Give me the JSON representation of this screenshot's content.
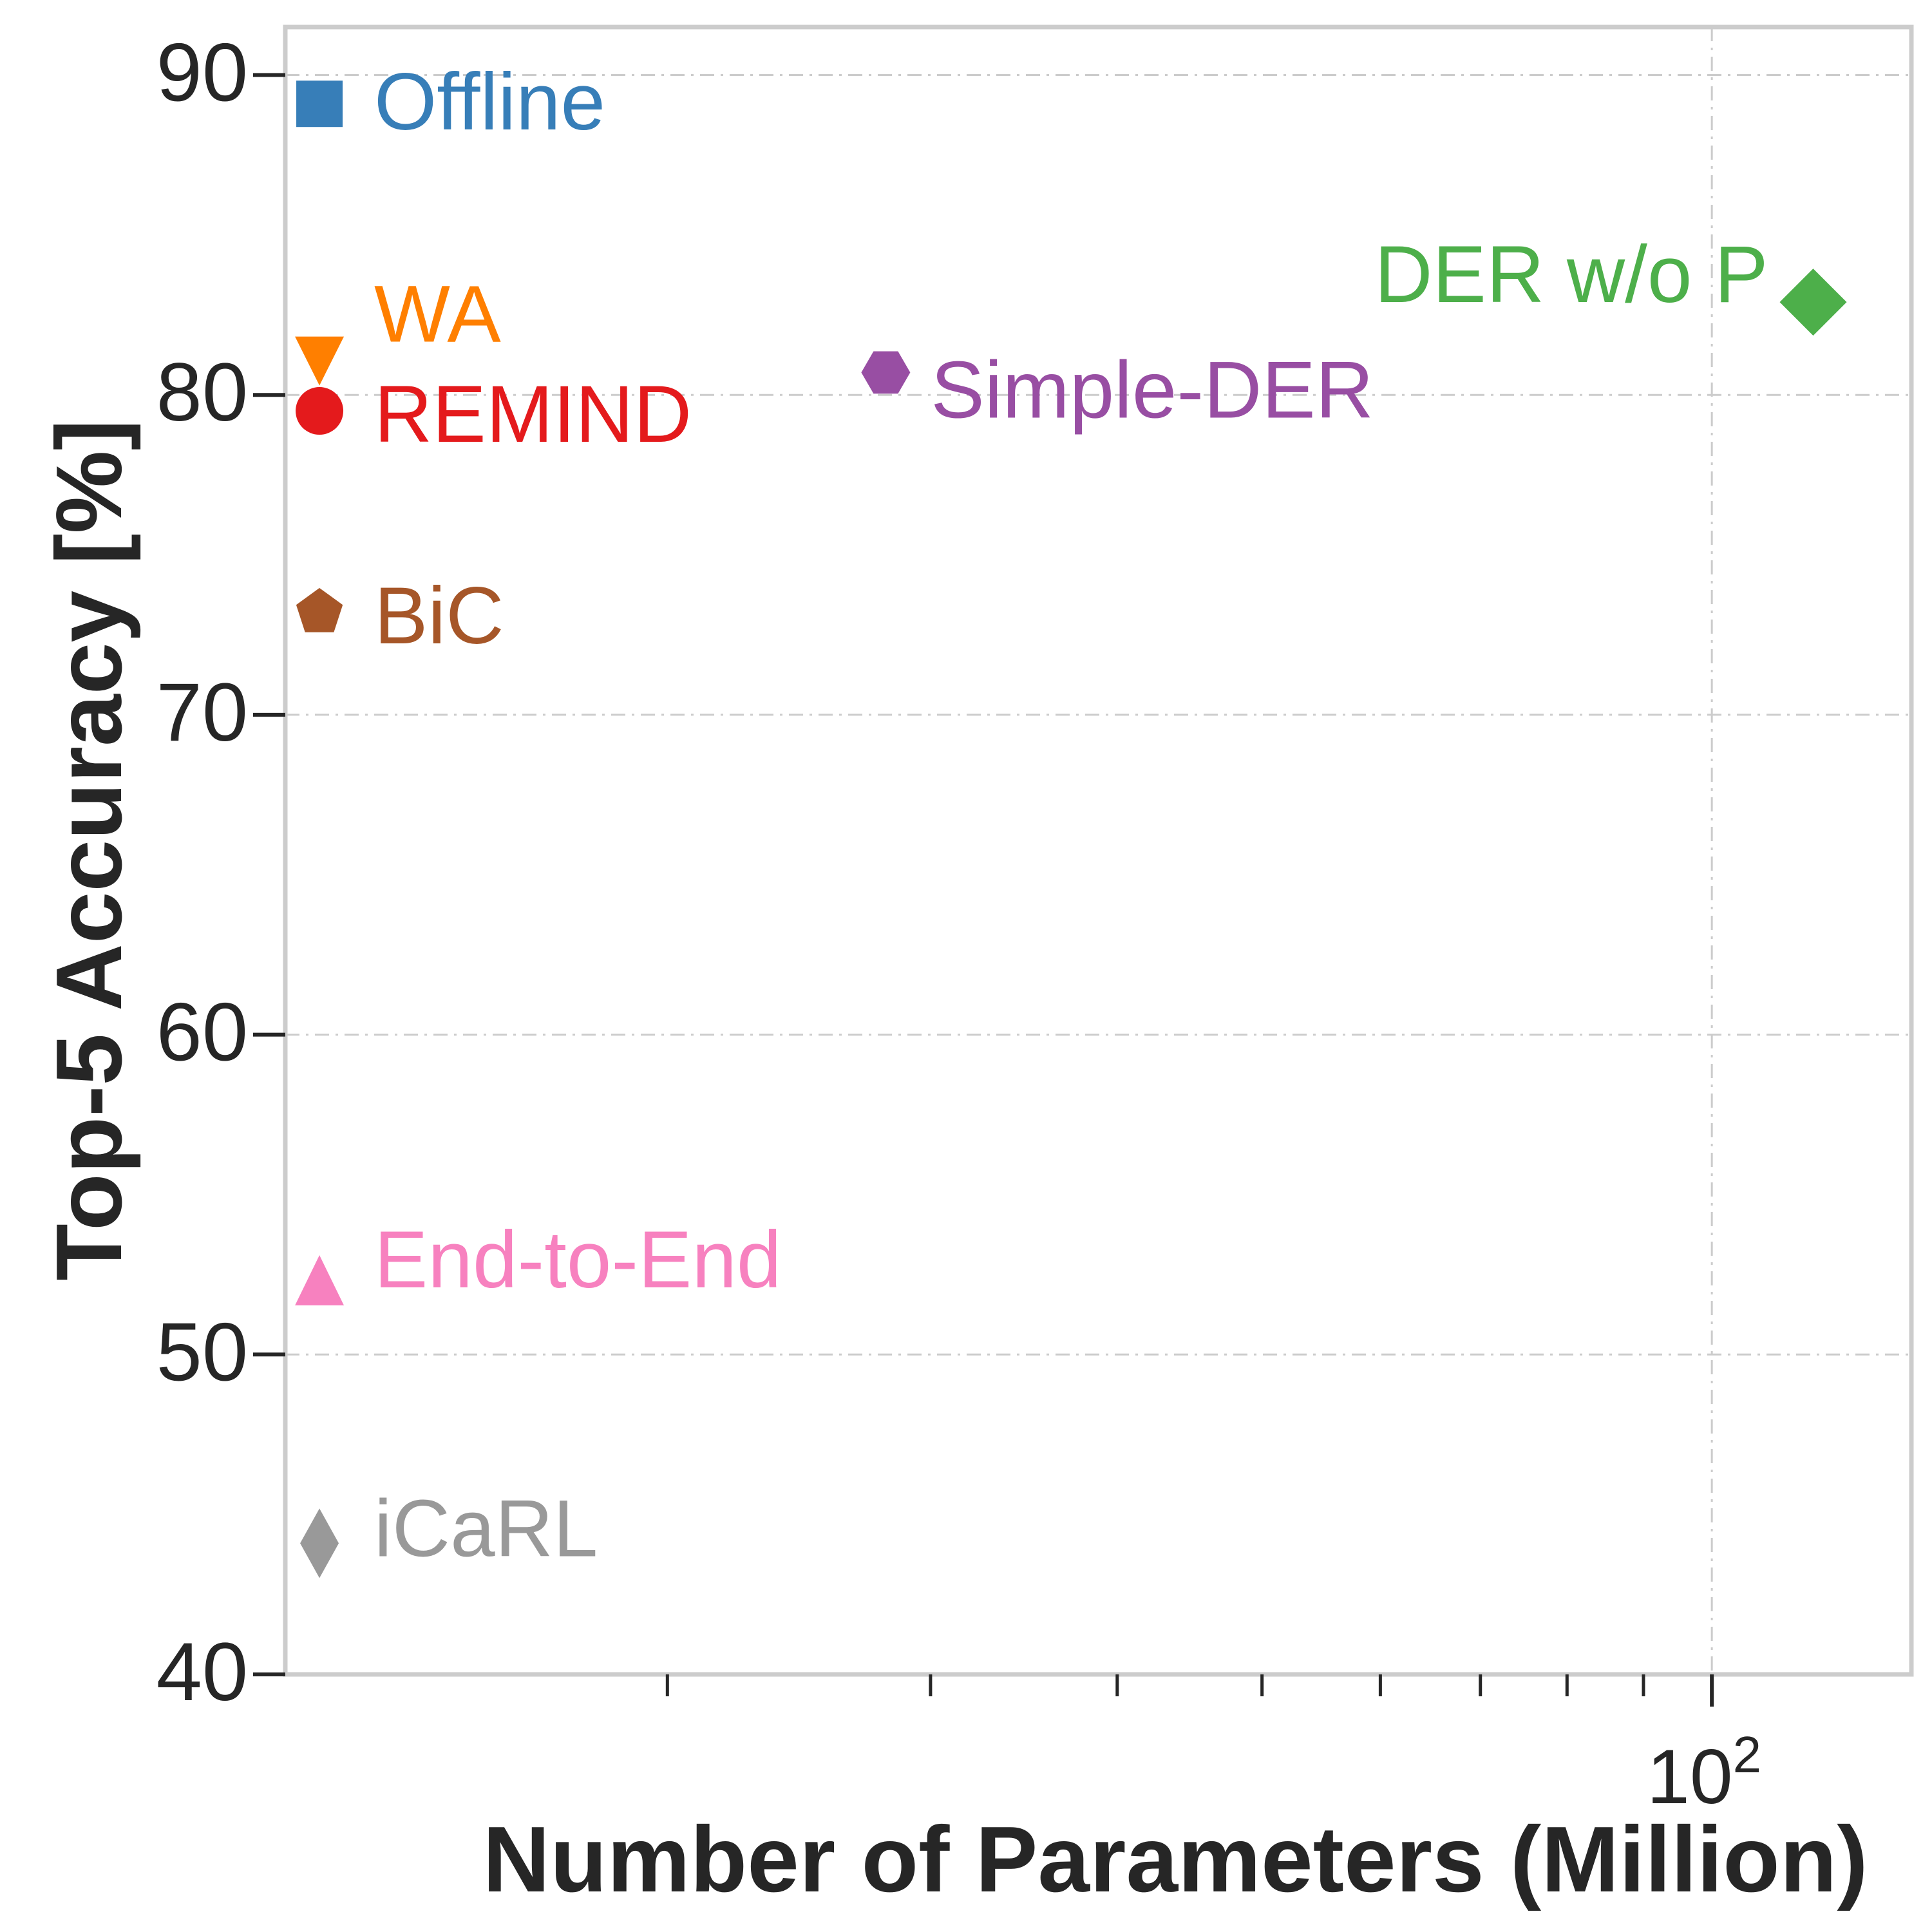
{
  "chart_data": {
    "type": "scatter",
    "xlabel": "Number of Parameters (Million)",
    "ylabel": "Top-5 Accuracy [%]",
    "x_scale": "log",
    "xlim": [
      11.1,
      136
    ],
    "ylim": [
      40,
      91.5
    ],
    "x_tick_label": {
      "base": "10",
      "exponent": "2"
    },
    "x_major_tick": 100,
    "x_minor_ticks": [
      20,
      30,
      40,
      50,
      60,
      70,
      80,
      90
    ],
    "y_ticks": [
      40,
      50,
      60,
      70,
      80,
      90
    ],
    "grid": true,
    "legend": "none",
    "series": [
      {
        "name": "Offline",
        "x": 11.7,
        "y": 89.1,
        "color": "#377eb8",
        "marker": "square"
      },
      {
        "name": "WA",
        "x": 11.7,
        "y": 81.1,
        "color": "#ff7f00",
        "marker": "triangle-down"
      },
      {
        "name": "REMIND",
        "x": 11.7,
        "y": 79.5,
        "color": "#e41a1c",
        "marker": "circle"
      },
      {
        "name": "BiC",
        "x": 11.7,
        "y": 73.2,
        "color": "#a65628",
        "marker": "pentagon"
      },
      {
        "name": "End-to-End",
        "x": 11.7,
        "y": 52.3,
        "color": "#f781bf",
        "marker": "triangle-up"
      },
      {
        "name": "iCaRL",
        "x": 11.7,
        "y": 44.1,
        "color": "#999999",
        "marker": "thin-diamond"
      },
      {
        "name": "Simple-DER",
        "x": 28.0,
        "y": 80.7,
        "color": "#984ea3",
        "marker": "hexagon"
      },
      {
        "name": "DER w/o P",
        "x": 116.9,
        "y": 82.9,
        "color": "#4daf4a",
        "marker": "diamond"
      }
    ]
  }
}
